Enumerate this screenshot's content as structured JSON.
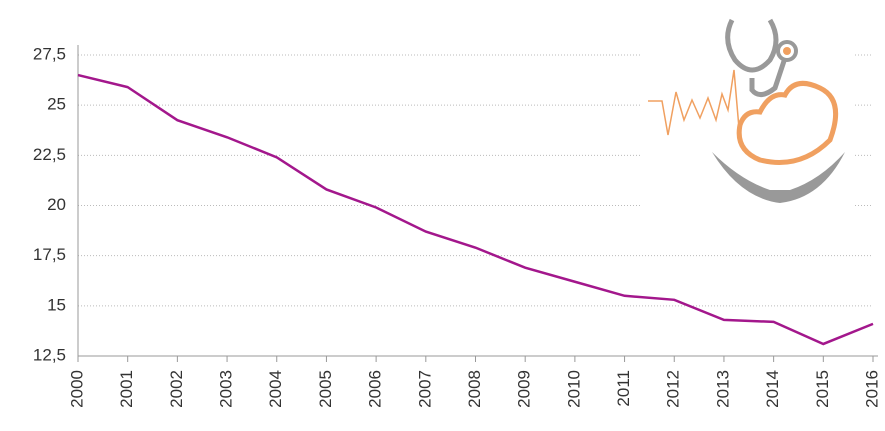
{
  "chart_data": {
    "type": "line",
    "categories": [
      "2000",
      "2001",
      "2002",
      "2003",
      "2004",
      "2005",
      "2006",
      "2007",
      "2008",
      "2009",
      "2010",
      "2011",
      "2012",
      "2013",
      "2014",
      "2015",
      "2016"
    ],
    "series": [
      {
        "name": null,
        "color": "#a3178c",
        "values": [
          26.5,
          25.9,
          24.25,
          23.4,
          22.4,
          20.8,
          19.9,
          18.7,
          17.9,
          16.9,
          16.2,
          15.5,
          15.3,
          14.3,
          14.2,
          13.1,
          14.1
        ]
      }
    ],
    "ylim": [
      12.5,
      27.5
    ],
    "yticks": [
      {
        "value": 12.5,
        "label": "12,5"
      },
      15,
      {
        "value": 17.5,
        "label": "17,5"
      },
      20,
      {
        "value": 22.5,
        "label": "22,5"
      },
      25,
      {
        "value": 27.5,
        "label": "27,5"
      }
    ],
    "grid": true
  }
}
